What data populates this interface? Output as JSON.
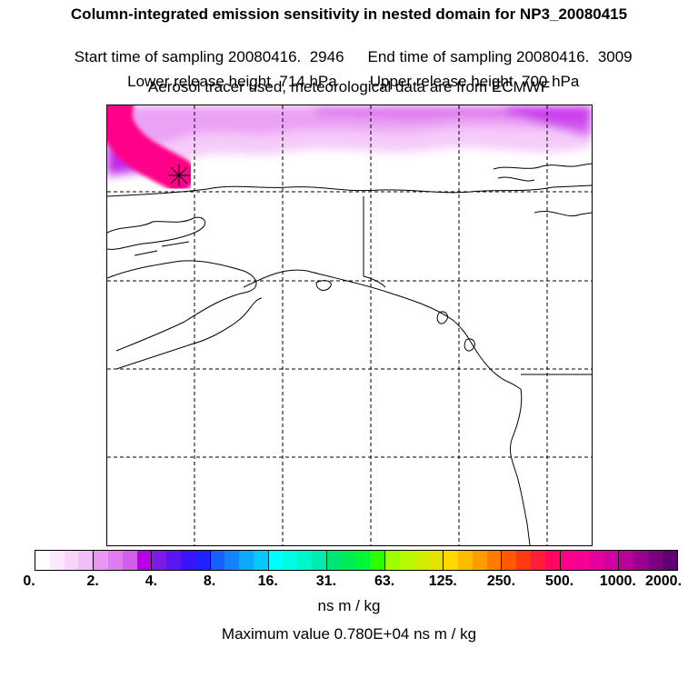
{
  "header": {
    "title": "Column-integrated emission sensitivity in nested domain for NP3_20080415",
    "start_label": "Start time of sampling 20080416.  2946",
    "end_label": "End time of sampling 20080416.  3009",
    "lower_label": "Lower release height  714 hPa",
    "upper_label": "Upper release height  700 hPa",
    "tracer_label": "Aerosol tracer used, meteorological data are from ECMWF"
  },
  "colorbar": {
    "ticks": [
      "0.",
      "2.",
      "4.",
      "8.",
      "16.",
      "31.",
      "63.",
      "125.",
      "250.",
      "500.",
      "1000.",
      "2000."
    ],
    "colors": [
      [
        "#ffffff",
        "#fce9fd",
        "#f8d4fb",
        "#f3bef8"
      ],
      [
        "#e897f3",
        "#e07cf0",
        "#d35ee9",
        "#b800e8"
      ],
      [
        "#7a1be8",
        "#5a16f0",
        "#3a14f7",
        "#1f21ff"
      ],
      [
        "#1560ff",
        "#1384ff",
        "#0ea9ff",
        "#08c8ff"
      ],
      [
        "#00ffff",
        "#00fbe4",
        "#00f6c8",
        "#00ecae"
      ],
      [
        "#00e676",
        "#00ee54",
        "#00f736",
        "#2bff00"
      ],
      [
        "#9dff00",
        "#b8fa00",
        "#cfef00",
        "#e4e400"
      ],
      [
        "#ffd900",
        "#ffbd00",
        "#ff9d00",
        "#ff7a00"
      ],
      [
        "#ff5a00",
        "#ff3a10",
        "#ff1f3a",
        "#ff0760"
      ],
      [
        "#ff0088",
        "#f50090",
        "#e5009a",
        "#d100a0"
      ],
      [
        "#b8009a",
        "#9a0090",
        "#7c0080",
        "#5f0070"
      ]
    ],
    "unit_label": "ns m / kg",
    "max_label": "Maximum value  0.780E+04 ns m / kg"
  },
  "map": {
    "receptor_marker": "asterisk-marker",
    "grid": "dashed",
    "plume_colors": [
      "#ff0088",
      "#ff5a00",
      "#ffd900",
      "#00ffff",
      "#1f21ff",
      "#b800e8",
      "#e897f3",
      "#f3bef8"
    ]
  }
}
